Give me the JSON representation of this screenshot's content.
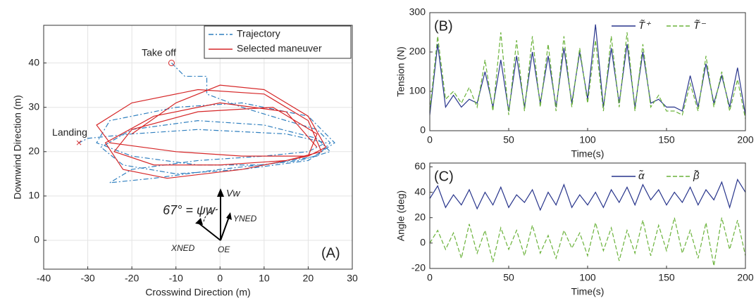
{
  "chart_data": [
    {
      "type": "line",
      "panel_label": "(A)",
      "xlabel": "Crosswind Direction (m)",
      "ylabel": "Downwind Direction (m)",
      "xlim": [
        -40,
        30
      ],
      "xticks": [
        -40,
        -30,
        -20,
        -10,
        0,
        10,
        20,
        30
      ],
      "ylim": [
        -6.5,
        48.5
      ],
      "yticks": [
        0,
        10,
        20,
        30,
        40
      ],
      "grid": true,
      "legend": "northeast",
      "annotations": {
        "takeoff": "Take off",
        "landing": "Landing",
        "angle": "67° = ψw",
        "vw": "Vw",
        "yned": "YNED",
        "xned": "XNED",
        "oe": "OE"
      },
      "series": [
        {
          "name": "Trajectory",
          "color": "#2f7fbf",
          "style": "dashdot",
          "x": [
            -11,
            -8,
            -3,
            -3,
            5,
            15,
            22,
            25,
            22,
            10,
            -5,
            -20,
            -28,
            -25,
            -10,
            5,
            20,
            26,
            20,
            5,
            -10,
            -22,
            -27,
            -20,
            -5,
            10,
            22,
            25,
            18,
            0,
            -15,
            -25,
            -20,
            -5,
            10,
            20,
            24,
            15,
            -5,
            -20,
            -30,
            -32
          ],
          "values": [
            40,
            37,
            37,
            33,
            30,
            27,
            25,
            22,
            19,
            17,
            17,
            19,
            22,
            27,
            30,
            31,
            28,
            22,
            18,
            16,
            15,
            17,
            21,
            25,
            27,
            26,
            23,
            20,
            18,
            16,
            14,
            13,
            16,
            18,
            19,
            20,
            22,
            24,
            25,
            24,
            23,
            22
          ]
        },
        {
          "name": "Selected maneuver",
          "color": "#d62728",
          "style": "solid",
          "x": [
            -20,
            -10,
            0,
            10,
            20,
            24,
            20,
            5,
            -10,
            -25,
            -28,
            -20,
            -5,
            10,
            20,
            23,
            15,
            0,
            -15,
            -24,
            -20,
            -5,
            12,
            22,
            20,
            5,
            -12,
            -22,
            -26,
            -15,
            0,
            15,
            22
          ],
          "values": [
            24,
            31,
            35,
            34,
            28,
            21,
            19,
            19,
            20,
            22,
            26,
            31,
            34,
            33,
            27,
            20,
            18,
            17,
            17,
            20,
            25,
            29,
            30,
            24,
            19,
            16,
            14,
            16,
            22,
            28,
            31,
            29,
            21
          ]
        }
      ]
    },
    {
      "type": "line",
      "panel_label": "(B)",
      "xlabel": "Time(s)",
      "ylabel": "Tension (N)",
      "xlim": [
        0,
        200
      ],
      "xticks": [
        0,
        50,
        100,
        150,
        200
      ],
      "ylim": [
        0,
        300
      ],
      "yticks": [
        0,
        100,
        200,
        300
      ],
      "grid": false,
      "legend": "north",
      "x": [
        0,
        5,
        10,
        15,
        20,
        25,
        30,
        35,
        40,
        45,
        50,
        55,
        60,
        65,
        70,
        75,
        80,
        85,
        90,
        95,
        100,
        105,
        110,
        115,
        120,
        125,
        130,
        135,
        140,
        145,
        150,
        155,
        160,
        165,
        170,
        175,
        180,
        185,
        190,
        195,
        200
      ],
      "series": [
        {
          "name": "T̃⁺",
          "color": "#27348b",
          "style": "solid",
          "values": [
            40,
            220,
            60,
            90,
            60,
            80,
            70,
            150,
            60,
            180,
            50,
            190,
            60,
            200,
            70,
            190,
            60,
            210,
            70,
            200,
            80,
            270,
            60,
            210,
            70,
            220,
            60,
            200,
            70,
            80,
            60,
            60,
            50,
            140,
            60,
            170,
            70,
            140,
            60,
            160,
            40
          ]
        },
        {
          "name": "T̃⁻",
          "color": "#6ab23a",
          "style": "dashed",
          "values": [
            50,
            240,
            80,
            100,
            70,
            110,
            60,
            180,
            50,
            250,
            40,
            230,
            50,
            240,
            60,
            220,
            50,
            240,
            60,
            210,
            70,
            230,
            50,
            240,
            60,
            250,
            50,
            220,
            60,
            90,
            50,
            50,
            40,
            120,
            50,
            190,
            60,
            150,
            50,
            130,
            30
          ]
        }
      ]
    },
    {
      "type": "line",
      "panel_label": "(C)",
      "xlabel": "Time(s)",
      "ylabel": "Angle (deg)",
      "xlim": [
        0,
        200
      ],
      "xticks": [
        0,
        50,
        100,
        150,
        200
      ],
      "ylim": [
        -20,
        63
      ],
      "yticks": [
        -20,
        0,
        20,
        40,
        60
      ],
      "grid": false,
      "legend": "north",
      "x": [
        0,
        5,
        10,
        15,
        20,
        25,
        30,
        35,
        40,
        45,
        50,
        55,
        60,
        65,
        70,
        75,
        80,
        85,
        90,
        95,
        100,
        105,
        110,
        115,
        120,
        125,
        130,
        135,
        140,
        145,
        150,
        155,
        160,
        165,
        170,
        175,
        180,
        185,
        190,
        195,
        200
      ],
      "series": [
        {
          "name": "α̃",
          "color": "#27348b",
          "style": "solid",
          "values": [
            35,
            45,
            28,
            38,
            30,
            42,
            27,
            40,
            30,
            44,
            28,
            38,
            32,
            42,
            26,
            40,
            30,
            46,
            28,
            38,
            30,
            40,
            28,
            42,
            32,
            44,
            30,
            46,
            34,
            42,
            30,
            40,
            32,
            44,
            30,
            42,
            34,
            48,
            28,
            50,
            40
          ]
        },
        {
          "name": "β̃",
          "color": "#6ab23a",
          "style": "dashed",
          "values": [
            0,
            10,
            -5,
            8,
            -12,
            15,
            -8,
            10,
            -15,
            12,
            -5,
            10,
            -10,
            14,
            -8,
            6,
            -12,
            10,
            -4,
            8,
            -10,
            16,
            -6,
            12,
            -14,
            10,
            -8,
            18,
            -10,
            14,
            -6,
            20,
            -8,
            10,
            -12,
            16,
            -18,
            20,
            -5,
            18,
            -10
          ]
        }
      ]
    }
  ]
}
